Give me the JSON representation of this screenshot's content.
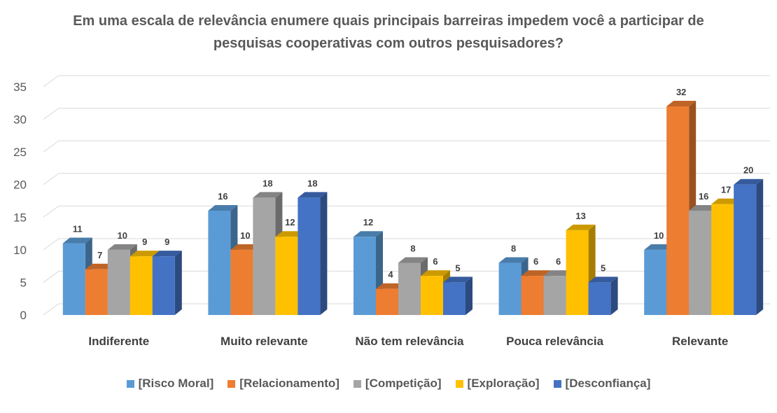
{
  "chart_data": {
    "type": "bar3d",
    "title": "Em uma escala de relevância enumere quais principais barreiras impedem você a participar de pesquisas cooperativas com outros pesquisadores?",
    "categories": [
      "Indiferente",
      "Muito relevante",
      "Não tem relevância",
      "Pouca relevância",
      "Relevante"
    ],
    "series": [
      {
        "name": "[Risco Moral]",
        "color": "#5b9bd5",
        "values": [
          11,
          16,
          12,
          8,
          10
        ]
      },
      {
        "name": "[Relacionamento]",
        "color": "#ed7d31",
        "values": [
          7,
          10,
          4,
          6,
          32
        ]
      },
      {
        "name": "[Competição]",
        "color": "#a5a5a5",
        "values": [
          10,
          18,
          8,
          6,
          16
        ]
      },
      {
        "name": "[Exploração]",
        "color": "#ffc000",
        "values": [
          9,
          12,
          6,
          13,
          17
        ]
      },
      {
        "name": "[Desconfiança]",
        "color": "#4472c4",
        "values": [
          9,
          18,
          5,
          5,
          20
        ]
      }
    ],
    "ylim": [
      0,
      35
    ],
    "yticks": [
      0,
      5,
      10,
      15,
      20,
      25,
      30,
      35
    ],
    "grid": true,
    "legend": "bottom"
  }
}
